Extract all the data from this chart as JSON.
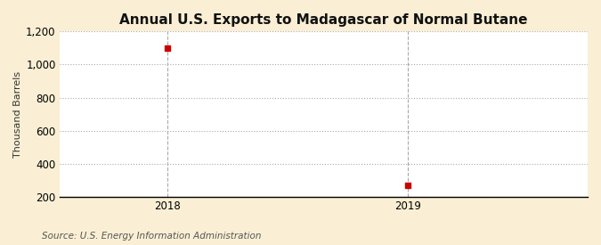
{
  "title": "Annual U.S. Exports to Madagascar of Normal Butane",
  "ylabel": "Thousand Barrels",
  "source": "Source: U.S. Energy Information Administration",
  "x_values": [
    2018,
    2019
  ],
  "y_values": [
    1100,
    268
  ],
  "ylim": [
    200,
    1200
  ],
  "xlim": [
    2017.55,
    2019.75
  ],
  "yticks": [
    200,
    400,
    600,
    800,
    1000,
    1200
  ],
  "ytick_labels": [
    "200",
    "400",
    "600",
    "800",
    "1,000",
    "1,200"
  ],
  "xticks": [
    2018,
    2019
  ],
  "marker_color": "#cc0000",
  "marker_size": 5,
  "grid_color": "#aaaaaa",
  "figure_bg_color": "#faefd4",
  "plot_bg_color": "#ffffff",
  "title_fontsize": 11,
  "label_fontsize": 8,
  "tick_fontsize": 8.5,
  "source_fontsize": 7.5
}
